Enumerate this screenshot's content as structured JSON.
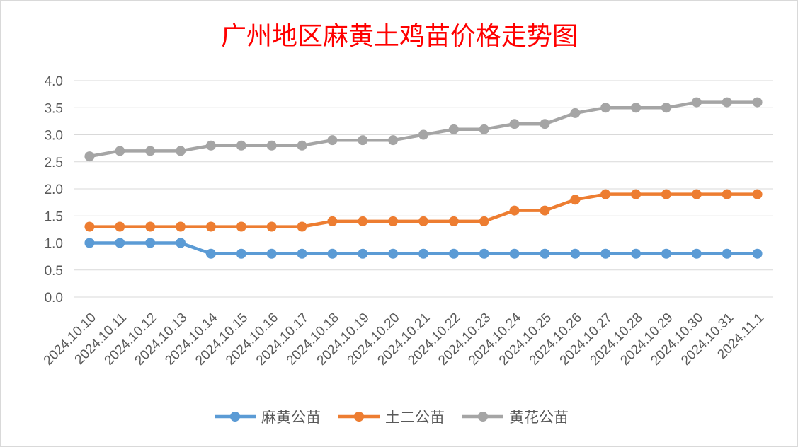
{
  "chart_data": {
    "type": "line",
    "title": "广州地区麻黄土鸡苗价格走势图",
    "ylim": [
      0,
      4
    ],
    "ytick_labels": [
      "0.0",
      "0.5",
      "1.0",
      "1.5",
      "2.0",
      "2.5",
      "3.0",
      "3.5",
      "4.0"
    ],
    "grid": true,
    "legend_position": "bottom",
    "categories": [
      "2024.10.10",
      "2024.10.11",
      "2024.10.12",
      "2024.10.13",
      "2024.10.14",
      "2024.10.15",
      "2024.10.16",
      "2024.10.17",
      "2024.10.18",
      "2024.10.19",
      "2024.10.20",
      "2024.10.21",
      "2024.10.22",
      "2024.10.23",
      "2024.10.24",
      "2024.10.25",
      "2024.10.26",
      "2024.10.27",
      "2024.10.28",
      "2024.10.29",
      "2024.10.30",
      "2024.10.31",
      "2024.11.1"
    ],
    "series": [
      {
        "name": "麻黄公苗",
        "color": "#5b9bd5",
        "values": [
          1.0,
          1.0,
          1.0,
          1.0,
          0.8,
          0.8,
          0.8,
          0.8,
          0.8,
          0.8,
          0.8,
          0.8,
          0.8,
          0.8,
          0.8,
          0.8,
          0.8,
          0.8,
          0.8,
          0.8,
          0.8,
          0.8,
          0.8
        ]
      },
      {
        "name": "土二公苗",
        "color": "#ed7d31",
        "values": [
          1.3,
          1.3,
          1.3,
          1.3,
          1.3,
          1.3,
          1.3,
          1.3,
          1.4,
          1.4,
          1.4,
          1.4,
          1.4,
          1.4,
          1.6,
          1.6,
          1.8,
          1.9,
          1.9,
          1.9,
          1.9,
          1.9,
          1.9
        ]
      },
      {
        "name": "黄花公苗",
        "color": "#a5a5a5",
        "values": [
          2.6,
          2.7,
          2.7,
          2.7,
          2.8,
          2.8,
          2.8,
          2.8,
          2.9,
          2.9,
          2.9,
          3.0,
          3.1,
          3.1,
          3.2,
          3.2,
          3.4,
          3.5,
          3.5,
          3.5,
          3.6,
          3.6,
          3.6
        ]
      }
    ]
  }
}
